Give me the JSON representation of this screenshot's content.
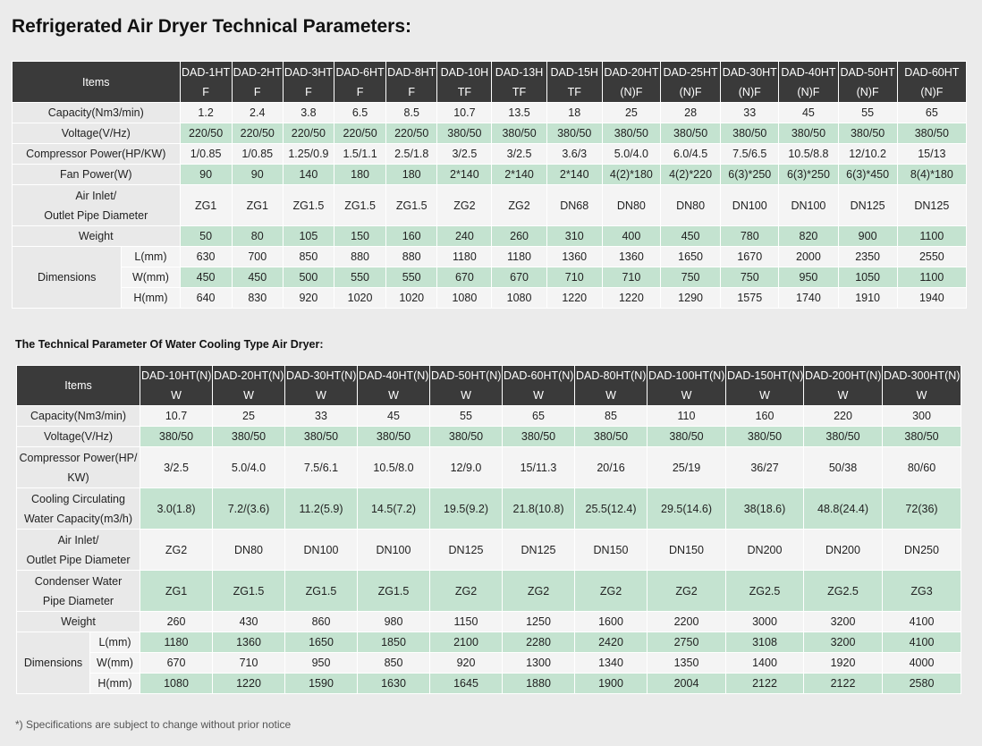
{
  "title": "Refrigerated Air Dryer Technical Parameters:",
  "subtitle": "The Technical Parameter Of Water Cooling Type Air Dryer:",
  "note": "*) Specifications are subject to change without prior notice",
  "table1": {
    "items_header": "Items",
    "models": [
      [
        "DAD-1HT",
        "F"
      ],
      [
        "DAD-2HT",
        "F"
      ],
      [
        "DAD-3HT",
        "F"
      ],
      [
        "DAD-6HT",
        "F"
      ],
      [
        "DAD-8HT",
        "F"
      ],
      [
        "DAD-10H",
        "TF"
      ],
      [
        "DAD-13H",
        "TF"
      ],
      [
        "DAD-15H",
        "TF"
      ],
      [
        "DAD-20HT",
        "(N)F"
      ],
      [
        "DAD-25HT",
        "(N)F"
      ],
      [
        "DAD-30HT",
        "(N)F"
      ],
      [
        "DAD-40HT",
        "(N)F"
      ],
      [
        "DAD-50HT",
        "(N)F"
      ],
      [
        "DAD-60HT",
        "(N)F"
      ]
    ],
    "rows": [
      {
        "label": [
          "Capacity(Nm3/min)"
        ],
        "values": [
          "1.2",
          "2.4",
          "3.8",
          "6.5",
          "8.5",
          "10.7",
          "13.5",
          "18",
          "25",
          "28",
          "33",
          "45",
          "55",
          "65"
        ]
      },
      {
        "label": [
          "Voltage(V/Hz)"
        ],
        "values": [
          "220/50",
          "220/50",
          "220/50",
          "220/50",
          "220/50",
          "380/50",
          "380/50",
          "380/50",
          "380/50",
          "380/50",
          "380/50",
          "380/50",
          "380/50",
          "380/50"
        ]
      },
      {
        "label": [
          "Compressor Power(HP/KW)"
        ],
        "values": [
          "1/0.85",
          "1/0.85",
          "1.25/0.9",
          "1.5/1.1",
          "2.5/1.8",
          "3/2.5",
          "3/2.5",
          "3.6/3",
          "5.0/4.0",
          "6.0/4.5",
          "7.5/6.5",
          "10.5/8.8",
          "12/10.2",
          "15/13"
        ]
      },
      {
        "label": [
          "Fan Power(W)"
        ],
        "values": [
          "90",
          "90",
          "140",
          "180",
          "180",
          "2*140",
          "2*140",
          "2*140",
          "4(2)*180",
          "4(2)*220",
          "6(3)*250",
          "6(3)*250",
          "6(3)*450",
          "8(4)*180"
        ]
      },
      {
        "label": [
          "Air Inlet/",
          "Outlet Pipe Diameter"
        ],
        "values": [
          "ZG1",
          "ZG1",
          "ZG1.5",
          "ZG1.5",
          "ZG1.5",
          "ZG2",
          "ZG2",
          "DN68",
          "DN80",
          "DN80",
          "DN100",
          "DN100",
          "DN125",
          "DN125"
        ]
      },
      {
        "label": [
          "Weight"
        ],
        "values": [
          "50",
          "80",
          "105",
          "150",
          "160",
          "240",
          "260",
          "310",
          "400",
          "450",
          "780",
          "820",
          "900",
          "1100"
        ]
      }
    ],
    "dimensions_label": "Dimensions",
    "dimensions": [
      {
        "label": "L(mm)",
        "values": [
          "630",
          "700",
          "850",
          "880",
          "880",
          "1180",
          "1180",
          "1360",
          "1360",
          "1650",
          "1670",
          "2000",
          "2350",
          "2550"
        ]
      },
      {
        "label": "W(mm)",
        "values": [
          "450",
          "450",
          "500",
          "550",
          "550",
          "670",
          "670",
          "710",
          "710",
          "750",
          "750",
          "950",
          "1050",
          "1100"
        ]
      },
      {
        "label": "H(mm)",
        "values": [
          "640",
          "830",
          "920",
          "1020",
          "1020",
          "1080",
          "1080",
          "1220",
          "1220",
          "1290",
          "1575",
          "1740",
          "1910",
          "1940"
        ]
      }
    ]
  },
  "table2": {
    "items_header": "Items",
    "models": [
      [
        "DAD-10HT(N)",
        "W"
      ],
      [
        "DAD-20HT(N)",
        "W"
      ],
      [
        "DAD-30HT(N)",
        "W"
      ],
      [
        "DAD-40HT(N)",
        "W"
      ],
      [
        "DAD-50HT(N)",
        "W"
      ],
      [
        "DAD-60HT(N)",
        "W"
      ],
      [
        "DAD-80HT(N)",
        "W"
      ],
      [
        "DAD-100HT(N)",
        "W"
      ],
      [
        "DAD-150HT(N)",
        "W"
      ],
      [
        "DAD-200HT(N)",
        "W"
      ],
      [
        "DAD-300HT(N)",
        "W"
      ]
    ],
    "rows": [
      {
        "label": [
          "Capacity(Nm3/min)"
        ],
        "values": [
          "10.7",
          "25",
          "33",
          "45",
          "55",
          "65",
          "85",
          "110",
          "160",
          "220",
          "300"
        ]
      },
      {
        "label": [
          "Voltage(V/Hz)"
        ],
        "values": [
          "380/50",
          "380/50",
          "380/50",
          "380/50",
          "380/50",
          "380/50",
          "380/50",
          "380/50",
          "380/50",
          "380/50",
          "380/50"
        ]
      },
      {
        "label": [
          "Compressor Power(HP/",
          "KW)"
        ],
        "values": [
          "3/2.5",
          "5.0/4.0",
          "7.5/6.1",
          "10.5/8.0",
          "12/9.0",
          "15/11.3",
          "20/16",
          "25/19",
          "36/27",
          "50/38",
          "80/60"
        ]
      },
      {
        "label": [
          "Cooling Circulating",
          "Water Capacity(m3/h)"
        ],
        "values": [
          "3.0(1.8)",
          "7.2/(3.6)",
          "11.2(5.9)",
          "14.5(7.2)",
          "19.5(9.2)",
          "21.8(10.8)",
          "25.5(12.4)",
          "29.5(14.6)",
          "38(18.6)",
          "48.8(24.4)",
          "72(36)"
        ]
      },
      {
        "label": [
          "Air Inlet/",
          "Outlet Pipe Diameter"
        ],
        "values": [
          "ZG2",
          "DN80",
          "DN100",
          "DN100",
          "DN125",
          "DN125",
          "DN150",
          "DN150",
          "DN200",
          "DN200",
          "DN250"
        ]
      },
      {
        "label": [
          "Condenser Water",
          "Pipe Diameter"
        ],
        "values": [
          "ZG1",
          "ZG1.5",
          "ZG1.5",
          "ZG1.5",
          "ZG2",
          "ZG2",
          "ZG2",
          "ZG2",
          "ZG2.5",
          "ZG2.5",
          "ZG3"
        ]
      },
      {
        "label": [
          "Weight"
        ],
        "values": [
          "260",
          "430",
          "860",
          "980",
          "1150",
          "1250",
          "1600",
          "2200",
          "3000",
          "3200",
          "4100"
        ]
      }
    ],
    "dimensions_label": "Dimensions",
    "dimensions": [
      {
        "label": "L(mm)",
        "values": [
          "1180",
          "1360",
          "1650",
          "1850",
          "2100",
          "2280",
          "2420",
          "2750",
          "3108",
          "3200",
          "4100"
        ]
      },
      {
        "label": "W(mm)",
        "values": [
          "670",
          "710",
          "950",
          "850",
          "920",
          "1300",
          "1340",
          "1350",
          "1400",
          "1920",
          "4000"
        ]
      },
      {
        "label": "H(mm)",
        "values": [
          "1080",
          "1220",
          "1590",
          "1630",
          "1645",
          "1880",
          "1900",
          "2004",
          "2122",
          "2122",
          "2580"
        ]
      }
    ]
  }
}
